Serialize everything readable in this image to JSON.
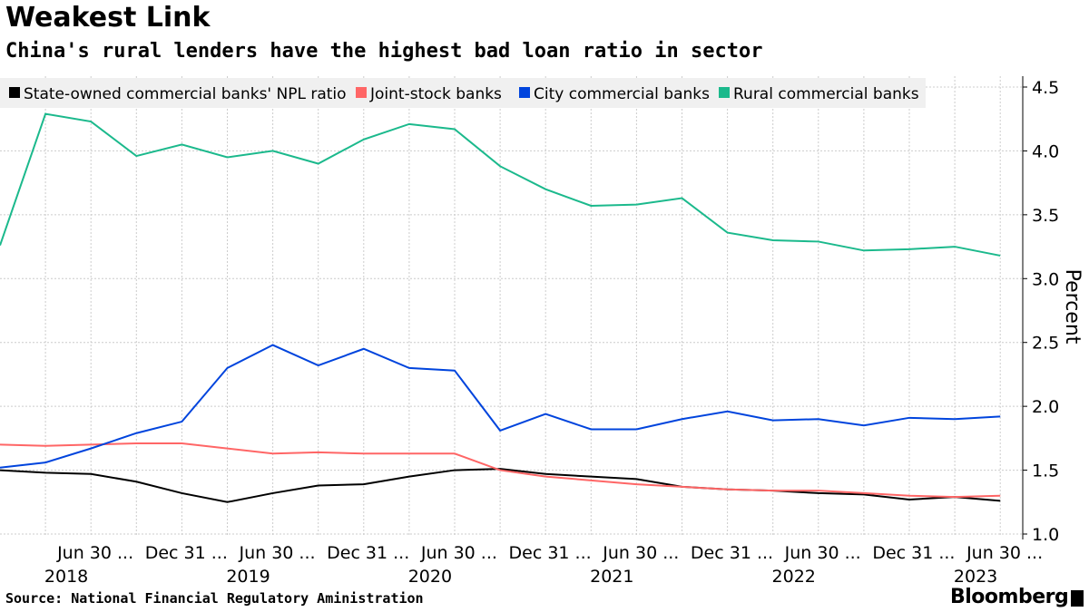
{
  "title": "Weakest Link",
  "subtitle": "China's rural lenders have the highest bad loan ratio in sector",
  "source": "Source: National Financial Regulatory Aministration",
  "logo": "Bloomberg",
  "chart_data": {
    "type": "line",
    "ylabel": "Percent",
    "ylim": [
      1.0,
      4.5
    ],
    "yticks": [
      "1.0",
      "1.5",
      "2.0",
      "2.5",
      "3.0",
      "3.5",
      "4.0",
      "4.5"
    ],
    "grid": true,
    "legend_position": "top-left",
    "x": [
      "2018-03-31",
      "2018-06-30",
      "2018-09-30",
      "2018-12-31",
      "2019-03-31",
      "2019-06-30",
      "2019-09-30",
      "2019-12-31",
      "2020-03-31",
      "2020-06-30",
      "2020-09-30",
      "2020-12-31",
      "2021-03-31",
      "2021-06-30",
      "2021-09-30",
      "2021-12-31",
      "2022-03-31",
      "2022-06-30",
      "2022-09-30",
      "2022-12-31",
      "2023-03-31",
      "2023-06-30",
      "2023-09-30"
    ],
    "xtick_labels": [
      {
        "index": 1,
        "label": "Jun 30 ..."
      },
      {
        "index": 3,
        "label": "Dec 31 ..."
      },
      {
        "index": 5,
        "label": "Jun 30 ..."
      },
      {
        "index": 7,
        "label": "Dec 31 ..."
      },
      {
        "index": 9,
        "label": "Jun 30 ..."
      },
      {
        "index": 11,
        "label": "Dec 31 ..."
      },
      {
        "index": 13,
        "label": "Jun 30 ..."
      },
      {
        "index": 15,
        "label": "Dec 31 ..."
      },
      {
        "index": 17,
        "label": "Jun 30 ..."
      },
      {
        "index": 19,
        "label": "Dec 31 ..."
      },
      {
        "index": 21,
        "label": "Jun 30 ..."
      }
    ],
    "year_labels": [
      {
        "index": 1,
        "label": "2018"
      },
      {
        "index": 5,
        "label": "2019"
      },
      {
        "index": 9,
        "label": "2020"
      },
      {
        "index": 13,
        "label": "2021"
      },
      {
        "index": 17,
        "label": "2022"
      },
      {
        "index": 21,
        "label": "2023"
      }
    ],
    "series": [
      {
        "name": "State-owned commercial banks' NPL ratio",
        "color": "#000000",
        "values": [
          1.5,
          1.48,
          1.47,
          1.41,
          1.32,
          1.25,
          1.32,
          1.38,
          1.39,
          1.45,
          1.5,
          1.51,
          1.47,
          1.45,
          1.43,
          1.37,
          1.35,
          1.34,
          1.32,
          1.31,
          1.27,
          1.29,
          1.26
        ]
      },
      {
        "name": "Joint-stock banks",
        "color": "#ff6666",
        "values": [
          1.7,
          1.69,
          1.7,
          1.71,
          1.71,
          1.67,
          1.63,
          1.64,
          1.63,
          1.63,
          1.63,
          1.5,
          1.45,
          1.42,
          1.39,
          1.37,
          1.35,
          1.34,
          1.34,
          1.32,
          1.3,
          1.29,
          1.3
        ]
      },
      {
        "name": "City commercial banks",
        "color": "#0044dd",
        "values": [
          1.52,
          1.56,
          1.67,
          1.79,
          1.88,
          2.3,
          2.48,
          2.32,
          2.45,
          2.3,
          2.28,
          1.81,
          1.94,
          1.82,
          1.82,
          1.9,
          1.96,
          1.89,
          1.9,
          1.85,
          1.91,
          1.9,
          1.92
        ]
      },
      {
        "name": "Rural commercial banks",
        "color": "#1bb98c",
        "values": [
          3.26,
          4.29,
          4.23,
          3.96,
          4.05,
          3.95,
          4.0,
          3.9,
          4.09,
          4.21,
          4.17,
          3.88,
          3.7,
          3.57,
          3.58,
          3.63,
          3.36,
          3.3,
          3.29,
          3.22,
          3.23,
          3.25,
          3.18
        ]
      }
    ]
  }
}
